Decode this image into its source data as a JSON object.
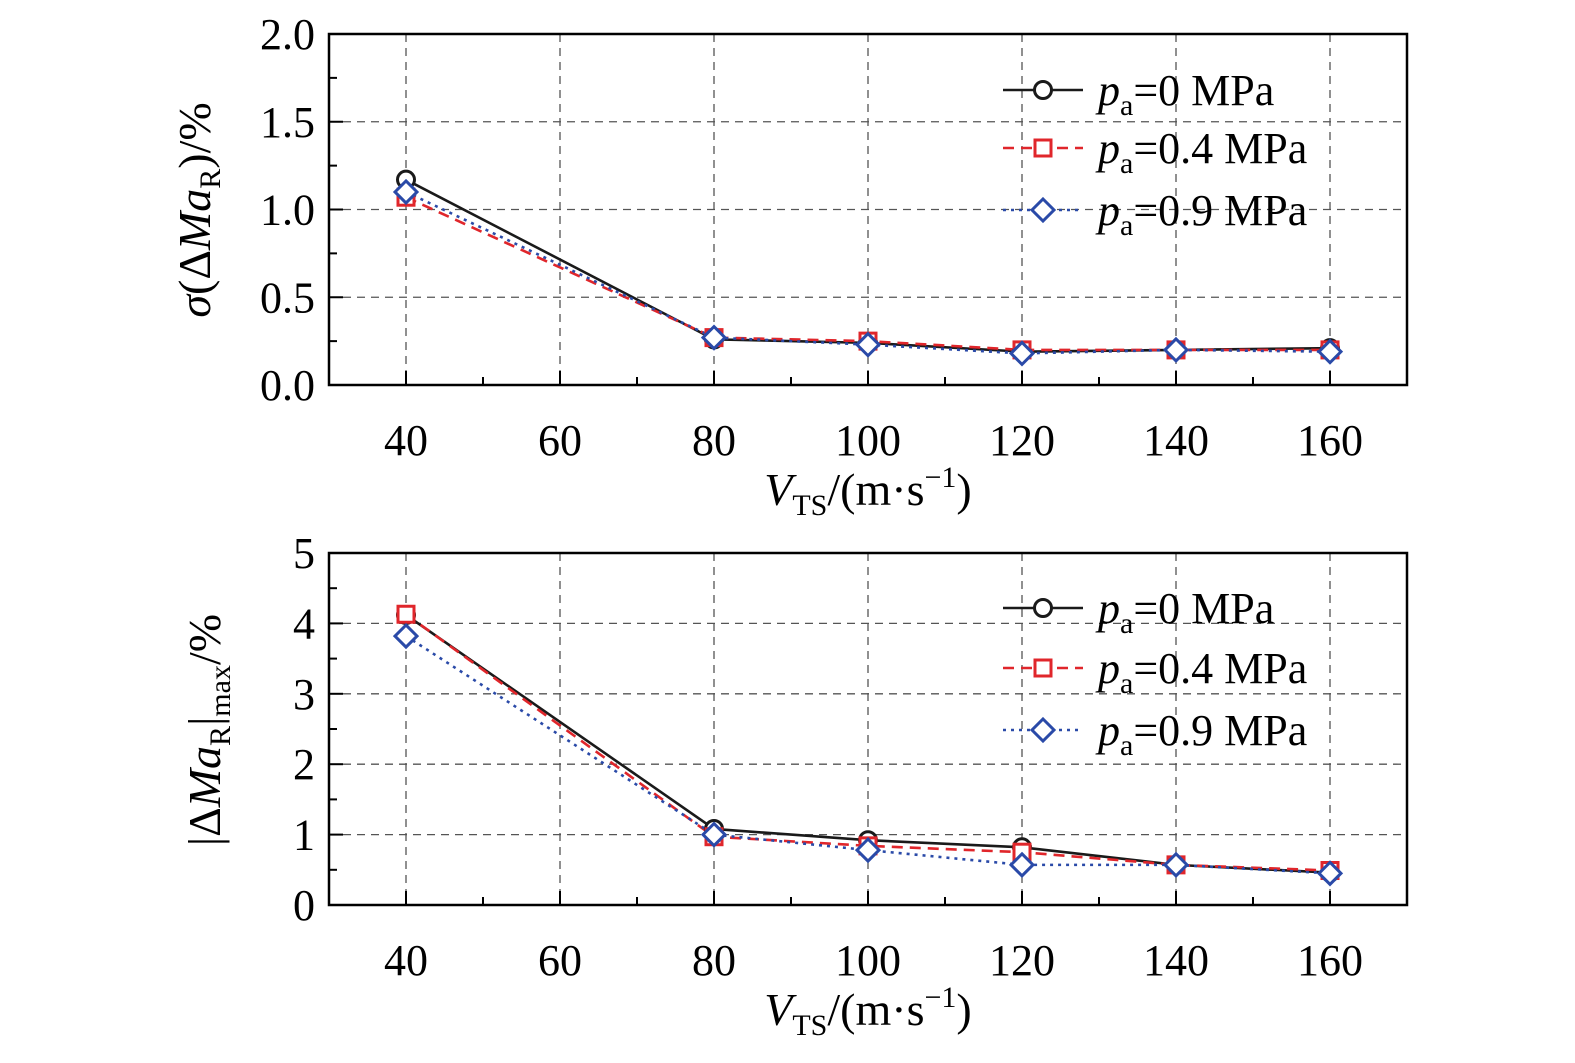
{
  "chart_data": [
    {
      "type": "line",
      "name": "std-chart",
      "x": [
        40,
        80,
        100,
        120,
        140,
        160
      ],
      "xlim": [
        30,
        170
      ],
      "xticks": [
        40,
        60,
        80,
        100,
        120,
        140,
        160
      ],
      "xtick_labels": [
        "40",
        "60",
        "80",
        "100",
        "120",
        "140",
        "160"
      ],
      "ylim": [
        0.0,
        2.0
      ],
      "yticks": [
        0.0,
        0.5,
        1.0,
        1.5,
        2.0
      ],
      "ytick_labels": [
        "0.0",
        "0.5",
        "1.0",
        "1.5",
        "2.0"
      ],
      "grid": true,
      "xlabel": {
        "main": "V",
        "sub": "TS",
        "rest": "/(m·s",
        "sup": "−1",
        "close": ")"
      },
      "ylabel": {
        "main": "σ(ΔMa",
        "sub": "R",
        "rest": ")/%"
      },
      "legend_position": "top-right",
      "series": [
        {
          "name": "p",
          "name_sub": "a",
          "name_rest": "=0 MPa",
          "color": "#1a1a1a",
          "dash": "solid",
          "marker": "circle",
          "values": [
            1.17,
            0.26,
            0.24,
            0.19,
            0.2,
            0.21
          ]
        },
        {
          "name": "p",
          "name_sub": "a",
          "name_rest": "=0.4 MPa",
          "color": "#e0262b",
          "dash": "dashed",
          "marker": "square",
          "values": [
            1.07,
            0.27,
            0.25,
            0.2,
            0.2,
            0.2
          ]
        },
        {
          "name": "p",
          "name_sub": "a",
          "name_rest": "=0.9 MPa",
          "color": "#2a4aa8",
          "dash": "dotted",
          "marker": "diamond",
          "values": [
            1.1,
            0.27,
            0.23,
            0.18,
            0.2,
            0.19
          ]
        }
      ]
    },
    {
      "type": "line",
      "name": "max-chart",
      "x": [
        40,
        80,
        100,
        120,
        140,
        160
      ],
      "xlim": [
        30,
        170
      ],
      "xticks": [
        40,
        60,
        80,
        100,
        120,
        140,
        160
      ],
      "xtick_labels": [
        "40",
        "60",
        "80",
        "100",
        "120",
        "140",
        "160"
      ],
      "ylim": [
        0,
        5
      ],
      "yticks": [
        0,
        1,
        2,
        3,
        4,
        5
      ],
      "ytick_labels": [
        "0",
        "1",
        "2",
        "3",
        "4",
        "5"
      ],
      "grid": true,
      "xlabel": {
        "main": "V",
        "sub": "TS",
        "rest": "/(m·s",
        "sup": "−1",
        "close": ")"
      },
      "ylabel": {
        "main": "|ΔMa",
        "sub": "R",
        "rest": "|",
        "sub2": "max",
        "rest2": "/%"
      },
      "legend_position": "top-right",
      "series": [
        {
          "name": "p",
          "name_sub": "a",
          "name_rest": "=0 MPa",
          "color": "#1a1a1a",
          "dash": "solid",
          "marker": "circle",
          "values": [
            4.12,
            1.08,
            0.92,
            0.82,
            0.57,
            0.46
          ]
        },
        {
          "name": "p",
          "name_sub": "a",
          "name_rest": "=0.4 MPa",
          "color": "#e0262b",
          "dash": "dashed",
          "marker": "square",
          "values": [
            4.13,
            0.97,
            0.84,
            0.75,
            0.57,
            0.49
          ]
        },
        {
          "name": "p",
          "name_sub": "a",
          "name_rest": "=0.9 MPa",
          "color": "#2a4aa8",
          "dash": "dotted",
          "marker": "diamond",
          "values": [
            3.82,
            1.0,
            0.78,
            0.57,
            0.57,
            0.45
          ]
        }
      ]
    }
  ]
}
